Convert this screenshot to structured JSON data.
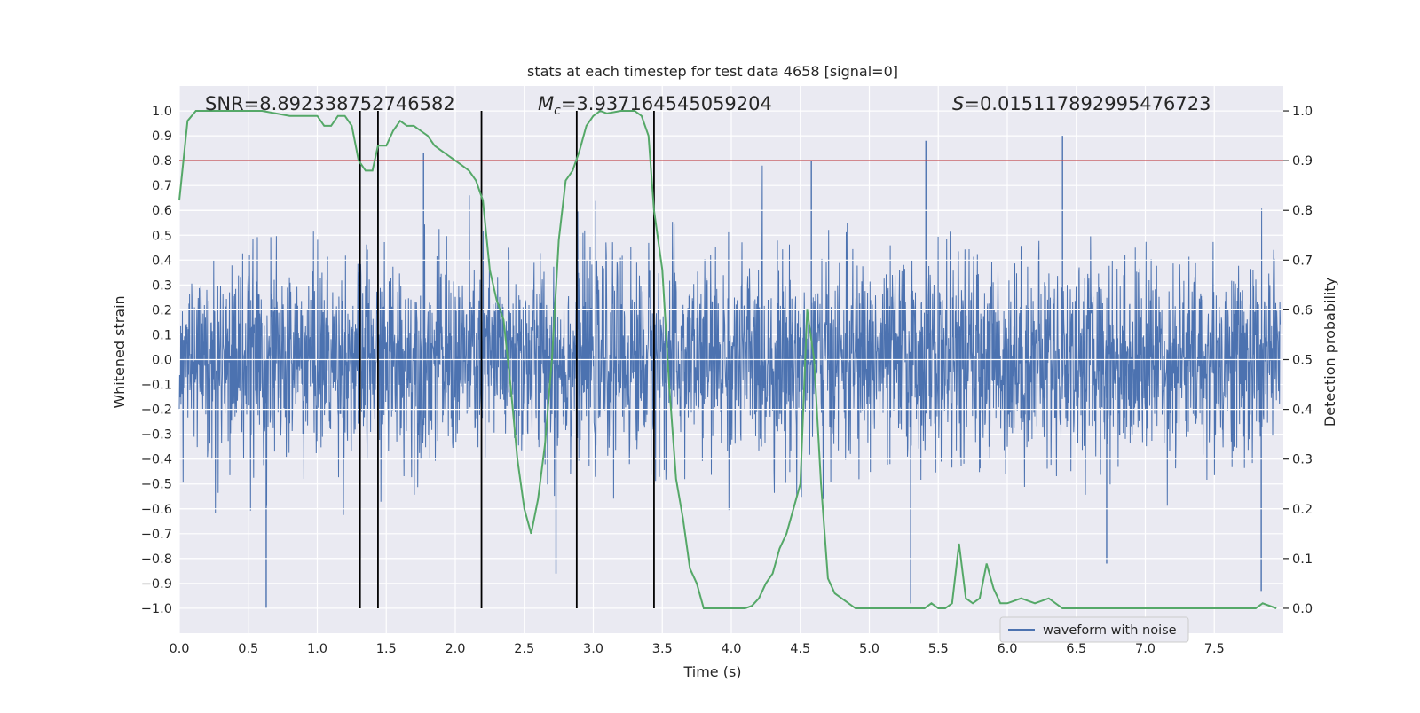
{
  "chart_data": {
    "type": "line",
    "title": "stats at each timestep for test data 4658 [signal=0]",
    "xlabel": "Time (s)",
    "ylabel": "Whitened strain",
    "y2label": "Detection probability",
    "xlim": [
      0.0,
      8.0
    ],
    "ylim": [
      -1.1,
      1.1
    ],
    "y2lim": [
      -0.05,
      1.05
    ],
    "x_ticks": [
      0.0,
      0.5,
      1.0,
      1.5,
      2.0,
      2.5,
      3.0,
      3.5,
      4.0,
      4.5,
      5.0,
      5.5,
      6.0,
      6.5,
      7.0,
      7.5
    ],
    "x_tick_labels": [
      "0.0",
      "0.5",
      "1.0",
      "1.5",
      "2.0",
      "2.5",
      "3.0",
      "3.5",
      "4.0",
      "4.5",
      "5.0",
      "5.5",
      "6.0",
      "6.5",
      "7.0",
      "7.5"
    ],
    "y_ticks": [
      -1.0,
      -0.9,
      -0.8,
      -0.7,
      -0.6,
      -0.5,
      -0.4,
      -0.3,
      -0.2,
      -0.1,
      0.0,
      0.1,
      0.2,
      0.3,
      0.4,
      0.5,
      0.6,
      0.7,
      0.8,
      0.9,
      1.0
    ],
    "y_tick_labels": [
      "−1.0",
      "−0.9",
      "−0.8",
      "−0.7",
      "−0.6",
      "−0.5",
      "−0.4",
      "−0.3",
      "−0.2",
      "−0.1",
      "0.0",
      "0.1",
      "0.2",
      "0.3",
      "0.4",
      "0.5",
      "0.6",
      "0.7",
      "0.8",
      "0.9",
      "1.0"
    ],
    "y2_ticks": [
      0.0,
      0.1,
      0.2,
      0.3,
      0.4,
      0.5,
      0.6,
      0.7,
      0.8,
      0.9,
      1.0
    ],
    "y2_tick_labels": [
      "0.0",
      "0.1",
      "0.2",
      "0.3",
      "0.4",
      "0.5",
      "0.6",
      "0.7",
      "0.8",
      "0.9",
      "1.0"
    ],
    "annotations": {
      "snr": "SNR=8.892338752746582",
      "mc_symbol": "M",
      "mc_sub": "c",
      "mc_value": "=3.937164545059204",
      "s_symbol": "S",
      "s_value": "=0.015117892995476723"
    },
    "legend": {
      "label": "waveform with noise",
      "position": "lower-right"
    },
    "threshold": {
      "y2": 0.9,
      "color": "#c44e52"
    },
    "vertical_lines_x": [
      1.31,
      1.44,
      2.19,
      2.88,
      3.44
    ],
    "waveform": {
      "name": "waveform with noise",
      "color": "#4c72b0",
      "description": "dense whitened noise sampled from ~N(0,0.2), range approx -1.0 to 0.9",
      "peaks": [
        {
          "x": 0.63,
          "y": -1.0
        },
        {
          "x": 1.44,
          "y": 0.82
        },
        {
          "x": 1.77,
          "y": 0.83
        },
        {
          "x": 2.73,
          "y": -0.86
        },
        {
          "x": 4.58,
          "y": 0.8
        },
        {
          "x": 5.3,
          "y": -0.98
        },
        {
          "x": 5.41,
          "y": 0.88
        },
        {
          "x": 6.4,
          "y": 0.9
        },
        {
          "x": 6.72,
          "y": -0.82
        },
        {
          "x": 7.84,
          "y": -0.93
        }
      ]
    },
    "detection_probability": {
      "name": "Detection probability",
      "color": "#55a868",
      "x": [
        0.0,
        0.06,
        0.12,
        0.2,
        0.3,
        0.4,
        0.5,
        0.6,
        0.7,
        0.8,
        0.9,
        1.0,
        1.05,
        1.1,
        1.15,
        1.2,
        1.25,
        1.3,
        1.35,
        1.4,
        1.44,
        1.5,
        1.55,
        1.6,
        1.65,
        1.7,
        1.75,
        1.8,
        1.85,
        1.9,
        1.95,
        2.0,
        2.05,
        2.1,
        2.15,
        2.2,
        2.25,
        2.3,
        2.35,
        2.4,
        2.45,
        2.5,
        2.55,
        2.6,
        2.65,
        2.7,
        2.75,
        2.8,
        2.85,
        2.9,
        2.95,
        3.0,
        3.05,
        3.1,
        3.2,
        3.3,
        3.35,
        3.4,
        3.44,
        3.5,
        3.55,
        3.6,
        3.65,
        3.7,
        3.75,
        3.8,
        3.9,
        4.0,
        4.1,
        4.15,
        4.2,
        4.25,
        4.3,
        4.35,
        4.4,
        4.45,
        4.5,
        4.55,
        4.6,
        4.65,
        4.7,
        4.75,
        4.8,
        4.9,
        5.0,
        5.1,
        5.2,
        5.3,
        5.4,
        5.45,
        5.5,
        5.55,
        5.6,
        5.65,
        5.7,
        5.75,
        5.8,
        5.85,
        5.9,
        5.95,
        6.0,
        6.1,
        6.2,
        6.3,
        6.4,
        6.5,
        6.6,
        6.7,
        6.8,
        6.9,
        7.0,
        7.1,
        7.2,
        7.3,
        7.4,
        7.5,
        7.6,
        7.7,
        7.8,
        7.85,
        7.95
      ],
      "values": [
        0.82,
        0.98,
        1.0,
        1.0,
        1.0,
        1.0,
        1.0,
        1.0,
        0.995,
        0.99,
        0.99,
        0.99,
        0.97,
        0.97,
        0.99,
        0.99,
        0.97,
        0.9,
        0.88,
        0.88,
        0.93,
        0.93,
        0.96,
        0.98,
        0.97,
        0.97,
        0.96,
        0.95,
        0.93,
        0.92,
        0.91,
        0.9,
        0.89,
        0.88,
        0.86,
        0.82,
        0.68,
        0.62,
        0.58,
        0.45,
        0.3,
        0.2,
        0.15,
        0.22,
        0.33,
        0.5,
        0.74,
        0.86,
        0.88,
        0.92,
        0.97,
        0.99,
        1.0,
        0.995,
        1.0,
        1.0,
        0.99,
        0.95,
        0.8,
        0.68,
        0.45,
        0.26,
        0.18,
        0.08,
        0.05,
        0.0,
        0.0,
        0.0,
        0.0,
        0.005,
        0.02,
        0.05,
        0.07,
        0.12,
        0.15,
        0.2,
        0.25,
        0.6,
        0.5,
        0.25,
        0.06,
        0.03,
        0.02,
        0.0,
        0.0,
        0.0,
        0.0,
        0.0,
        0.0,
        0.01,
        0.0,
        0.0,
        0.01,
        0.13,
        0.02,
        0.01,
        0.02,
        0.09,
        0.04,
        0.01,
        0.01,
        0.02,
        0.01,
        0.02,
        0.0,
        0.0,
        0.0,
        0.0,
        0.0,
        0.0,
        0.0,
        0.0,
        0.0,
        0.0,
        0.0,
        0.0,
        0.0,
        0.0,
        0.0,
        0.01,
        0.0
      ]
    }
  }
}
